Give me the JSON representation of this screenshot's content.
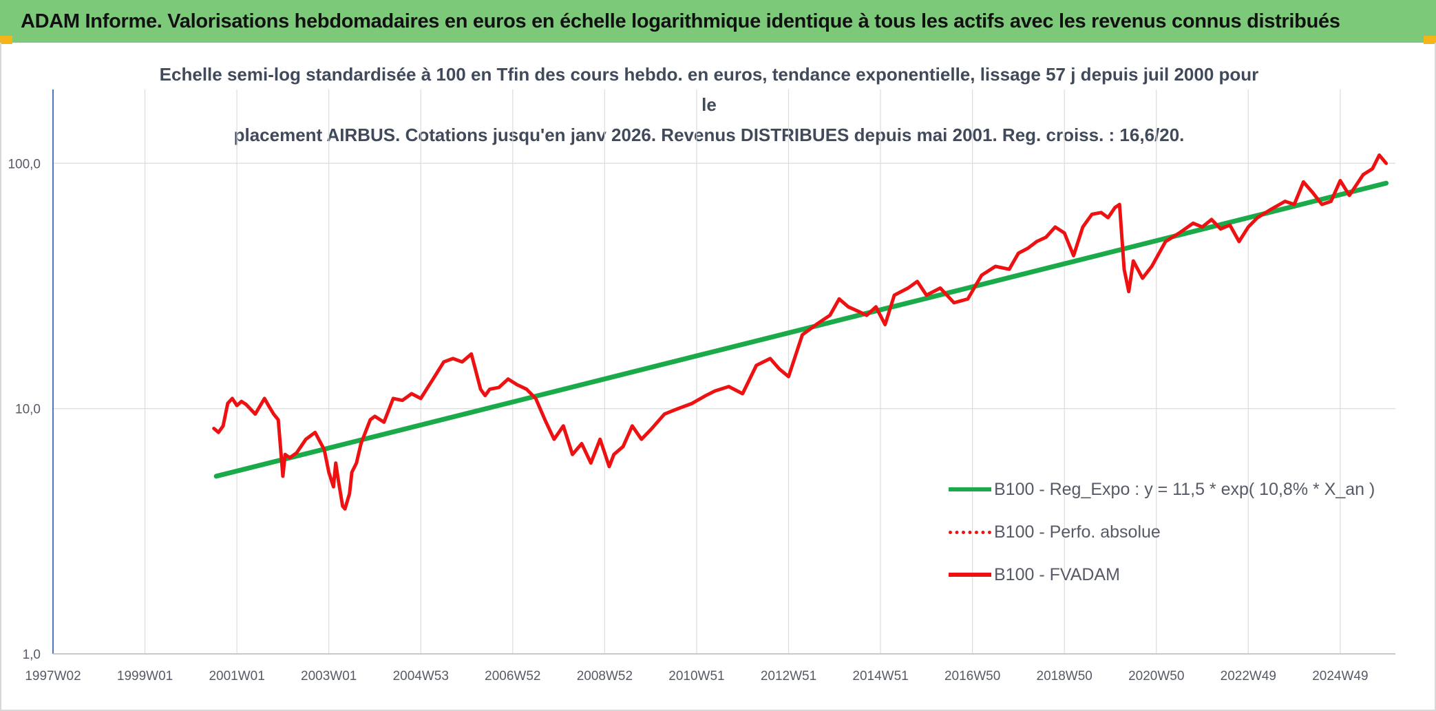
{
  "banner": {
    "title": "ADAM Informe. Valorisations hebdomadaires en euros en échelle logarithmique identique à tous les actifs avec les revenus connus distribués"
  },
  "colors": {
    "banner_bg": "#7dc97a",
    "trend": "#1aaa4a",
    "fvadam": "#ee1111",
    "perf": "#ee1111",
    "accent": "#f3b51a"
  },
  "chart_data": {
    "type": "line",
    "title_line1": "Echelle semi-log standardisée à 100 en Tfin des cours hebdo. en euros, tendance exponentielle, lissage 57 j depuis juil 2000 pour le",
    "title_line2": "placement AIRBUS. Cotations jusqu'en janv 2026. Revenus DISTRIBUES depuis mai 2001. Reg. croiss. : 16,6/20.",
    "y_scale": "log",
    "ylim": [
      1,
      200
    ],
    "y_ticks": [
      "1,0",
      "10,0",
      "100,0"
    ],
    "y_tick_values": [
      1,
      10,
      100
    ],
    "xlim": [
      1997.0,
      2026.2
    ],
    "x_tick_labels": [
      "1997W02",
      "1999W01",
      "2001W01",
      "2003W01",
      "2004W53",
      "2006W52",
      "2008W52",
      "2010W51",
      "2012W51",
      "2014W51",
      "2016W50",
      "2018W50",
      "2020W50",
      "2022W49",
      "2024W49"
    ],
    "x_tick_years": [
      1997.0,
      1999.0,
      2001.0,
      2003.0,
      2005.0,
      2007.0,
      2009.0,
      2011.0,
      2013.0,
      2015.0,
      2017.0,
      2019.0,
      2021.0,
      2023.0,
      2025.0
    ],
    "grid": "vertical and horizontal",
    "legend_position": "bottom-right",
    "series": [
      {
        "name": "B100 - Reg_Expo : y = 11,5 * exp( 10,8% *  X_an )",
        "style": "solid-thick",
        "color": "#1aaa4a",
        "x": [
          2000.55,
          2026.0
        ],
        "y": [
          5.3,
          83.0
        ]
      },
      {
        "name": "B100 - Perfo. absolue",
        "style": "dotted",
        "color": "#ee1111",
        "x": [],
        "y": []
      },
      {
        "name": "B100 - FVADAM",
        "style": "solid",
        "color": "#ee1111",
        "x": [
          2000.5,
          2000.6,
          2000.7,
          2000.8,
          2000.9,
          2001.0,
          2001.1,
          2001.2,
          2001.4,
          2001.6,
          2001.7,
          2001.8,
          2001.9,
          2002.0,
          2002.05,
          2002.15,
          2002.3,
          2002.5,
          2002.7,
          2002.9,
          2003.0,
          2003.1,
          2003.15,
          2003.2,
          2003.3,
          2003.35,
          2003.45,
          2003.5,
          2003.6,
          2003.7,
          2003.9,
          2004.0,
          2004.2,
          2004.4,
          2004.6,
          2004.8,
          2005.0,
          2005.3,
          2005.5,
          2005.7,
          2005.9,
          2006.1,
          2006.3,
          2006.4,
          2006.5,
          2006.7,
          2006.9,
          2007.1,
          2007.3,
          2007.5,
          2007.7,
          2007.9,
          2008.1,
          2008.3,
          2008.5,
          2008.7,
          2008.9,
          2009.1,
          2009.2,
          2009.4,
          2009.6,
          2009.8,
          2010.0,
          2010.3,
          2010.6,
          2010.9,
          2011.2,
          2011.4,
          2011.7,
          2012.0,
          2012.3,
          2012.6,
          2012.8,
          2013.0,
          2013.3,
          2013.6,
          2013.9,
          2014.1,
          2014.3,
          2014.5,
          2014.7,
          2014.9,
          2015.1,
          2015.3,
          2015.6,
          2015.8,
          2016.0,
          2016.3,
          2016.6,
          2016.9,
          2017.2,
          2017.5,
          2017.8,
          2018.0,
          2018.2,
          2018.4,
          2018.6,
          2018.8,
          2019.0,
          2019.2,
          2019.4,
          2019.6,
          2019.8,
          2019.95,
          2020.1,
          2020.2,
          2020.3,
          2020.4,
          2020.5,
          2020.7,
          2020.9,
          2021.2,
          2021.5,
          2021.8,
          2022.0,
          2022.2,
          2022.4,
          2022.6,
          2022.8,
          2023.0,
          2023.2,
          2023.5,
          2023.8,
          2024.0,
          2024.2,
          2024.4,
          2024.6,
          2024.8,
          2025.0,
          2025.2,
          2025.5,
          2025.7,
          2025.85,
          2026.0
        ],
        "y": [
          8.3,
          8.0,
          8.5,
          10.5,
          11.0,
          10.3,
          10.7,
          10.4,
          9.5,
          11.0,
          10.2,
          9.5,
          9.0,
          5.3,
          6.5,
          6.3,
          6.6,
          7.5,
          8.0,
          6.8,
          5.5,
          4.8,
          6.0,
          5.2,
          4.0,
          3.9,
          4.5,
          5.5,
          6.0,
          7.2,
          9.0,
          9.3,
          8.8,
          11.0,
          10.8,
          11.5,
          11.0,
          13.5,
          15.5,
          16.0,
          15.5,
          16.7,
          12.0,
          11.3,
          12.0,
          12.2,
          13.2,
          12.5,
          12.0,
          11.0,
          9.0,
          7.5,
          8.5,
          6.5,
          7.2,
          6.0,
          7.5,
          5.8,
          6.5,
          7.0,
          8.5,
          7.5,
          8.2,
          9.5,
          10.0,
          10.5,
          11.3,
          11.8,
          12.3,
          11.5,
          15.0,
          16.0,
          14.5,
          13.5,
          20.0,
          22.0,
          24.0,
          28.0,
          26.0,
          25.0,
          24.0,
          26.0,
          22.0,
          29.0,
          31.0,
          33.0,
          29.0,
          31.0,
          27.0,
          28.0,
          35.0,
          38.0,
          37.0,
          43.0,
          45.0,
          48.0,
          50.0,
          55.0,
          52.0,
          42.0,
          55.0,
          62.0,
          63.0,
          60.0,
          66.0,
          68.0,
          37.0,
          30.0,
          40.0,
          34.0,
          38.0,
          48.0,
          52.0,
          57.0,
          55.0,
          59.0,
          54.0,
          56.0,
          48.0,
          55.0,
          60.0,
          65.0,
          70.0,
          68.0,
          84.0,
          76.0,
          68.0,
          70.0,
          85.0,
          74.0,
          90.0,
          95.0,
          108.0,
          100.0
        ]
      }
    ]
  }
}
